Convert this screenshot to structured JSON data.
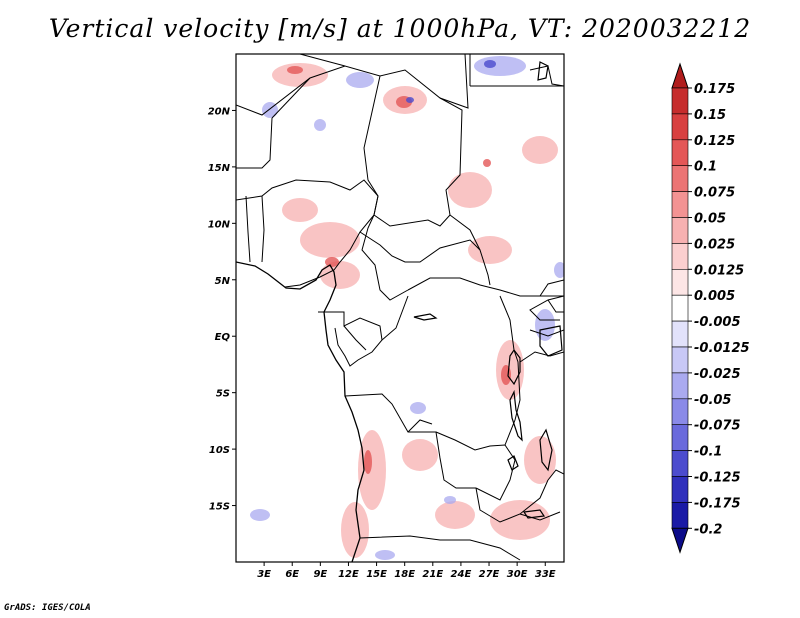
{
  "title": "Vertical velocity [m/s] at 1000hPa, VT: 2020032212",
  "credit": "GrADS: IGES/COLA",
  "map": {
    "lat_labels": [
      "20N",
      "15N",
      "10N",
      "5N",
      "EQ",
      "5S",
      "10S",
      "15S"
    ],
    "lat_values": [
      20,
      15,
      10,
      5,
      0,
      -5,
      -10,
      -15
    ],
    "lon_labels": [
      "3E",
      "6E",
      "9E",
      "12E",
      "15E",
      "18E",
      "21E",
      "24E",
      "27E",
      "30E",
      "33E"
    ],
    "lon_values": [
      3,
      6,
      9,
      12,
      15,
      18,
      21,
      24,
      27,
      30,
      33
    ],
    "lon_range": [
      0,
      35
    ],
    "lat_range": [
      -20,
      25
    ]
  },
  "colorbar": {
    "labels": [
      "0.175",
      "0.15",
      "0.125",
      "0.1",
      "0.075",
      "0.05",
      "0.025",
      "0.0125",
      "0.005",
      "-0.005",
      "-0.0125",
      "-0.025",
      "-0.05",
      "-0.075",
      "-0.1",
      "-0.125",
      "-0.175",
      "-0.2"
    ],
    "colors": [
      "#b01c1c",
      "#c62d2d",
      "#d84040",
      "#e45757",
      "#ec7474",
      "#f39393",
      "#f7b1b1",
      "#fbcfcf",
      "#fde6e6",
      "#ffffff",
      "#e2e2fb",
      "#c8c8f6",
      "#aaaaf0",
      "#8a8ae8",
      "#6a6adc",
      "#4c4cce",
      "#3030bc",
      "#1a1aa6",
      "#0c0c8a"
    ]
  }
}
